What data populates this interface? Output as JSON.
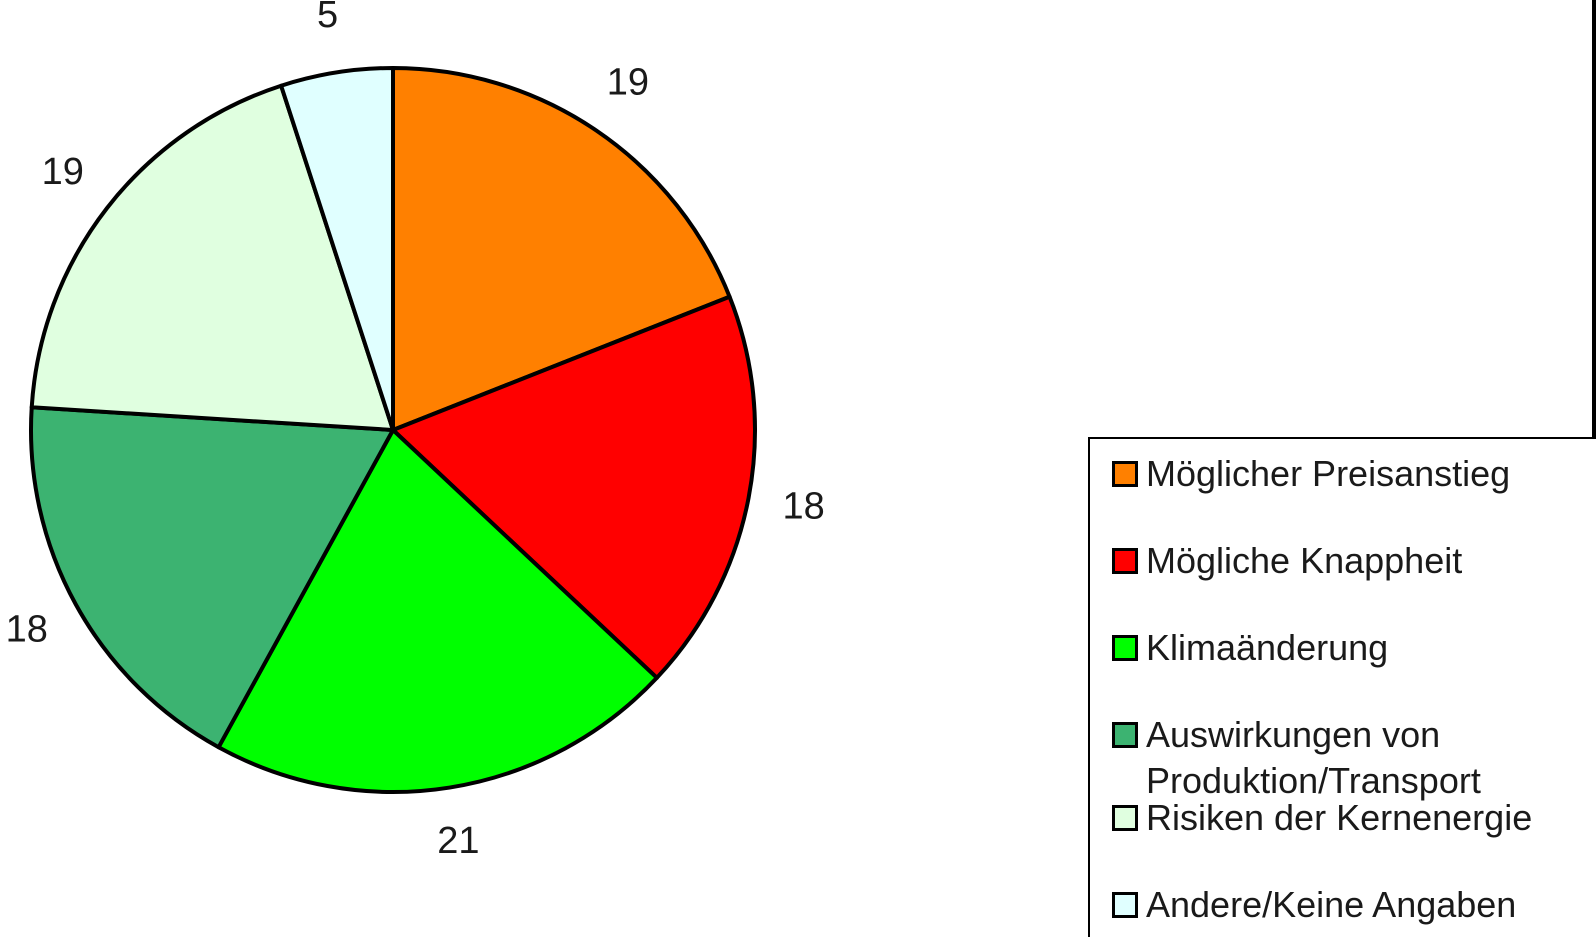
{
  "chart_data": {
    "type": "pie",
    "categories": [
      "Möglicher Preisanstieg",
      "Mögliche Knappheit",
      "Klimaänderung",
      "Auswirkungen von Produktion/Transport",
      "Risiken der Kernenergie",
      "Andere/Keine Angaben"
    ],
    "values": [
      19,
      18,
      21,
      18,
      19,
      5
    ],
    "data_labels": [
      "19",
      "18",
      "21",
      "18",
      "19",
      "5"
    ],
    "colors": [
      "#ff8000",
      "#ff0000",
      "#00ff00",
      "#3cb371",
      "#e0ffe0",
      "#e0ffff"
    ],
    "start_angle_deg": 0,
    "direction": "clockwise",
    "legend": {
      "placement": "bottom-right",
      "entries": [
        {
          "label": "Möglicher Preisanstieg",
          "color": "#ff8000"
        },
        {
          "label": "Mögliche Knappheit",
          "color": "#ff0000"
        },
        {
          "label": "Klimaänderung",
          "color": "#00ff00"
        },
        {
          "label": "Auswirkungen von Produktion/Transport",
          "color": "#3cb371"
        },
        {
          "label": "Risiken der Kernenergie",
          "color": "#e0ffe0"
        },
        {
          "label": "Andere/Keine Angaben",
          "color": "#e0ffff"
        }
      ]
    }
  }
}
